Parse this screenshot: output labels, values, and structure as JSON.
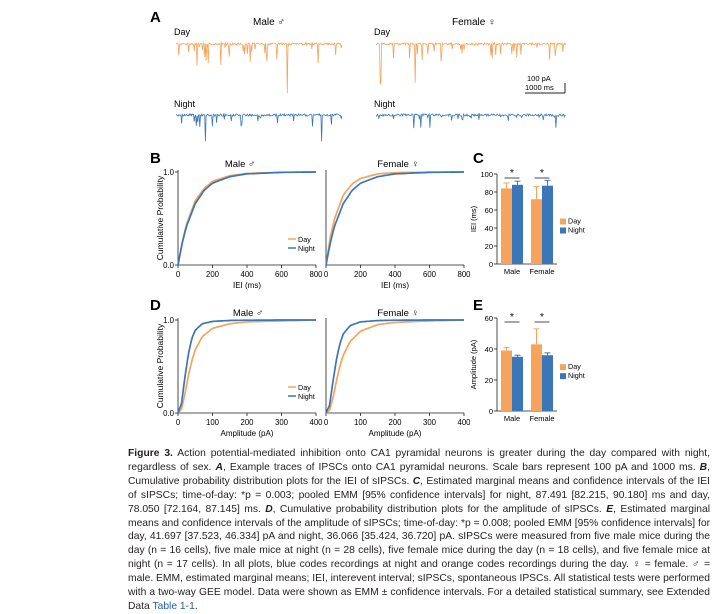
{
  "colors": {
    "day": "#f7a35c",
    "night": "#3b76b8",
    "link": "#1f5fa0",
    "axis": "#231f20"
  },
  "panel_a": {
    "letter": "A",
    "male_title": "Male ♂",
    "female_title": "Female ♀",
    "day_label": "Day",
    "night_label": "Night",
    "scale_pa": "100 pA",
    "scale_ms": "1000 ms"
  },
  "panel_b": {
    "letter": "B",
    "ylabel": "Cumulative Probability",
    "male_title": "Male ♂",
    "female_title": "Female ♀"
  },
  "panel_c": {
    "letter": "C"
  },
  "panel_d": {
    "letter": "D",
    "ylabel": "Cumulative Probability",
    "male_title": "Male ♂",
    "female_title": "Female ♀"
  },
  "panel_e": {
    "letter": "E"
  },
  "chart_data": [
    {
      "type": "line",
      "panel": "B-male",
      "title": "Male ♂",
      "xlabel": "IEI (ms)",
      "ylabel": "Cumulative Probability",
      "xlim": [
        0,
        800
      ],
      "ylim": [
        0,
        1
      ],
      "xticks": [
        "0",
        "200",
        "400",
        "600",
        "800"
      ],
      "yticks": [
        "0.0",
        "1.0"
      ],
      "legend": "bottom-right",
      "series": [
        {
          "name": "Day",
          "x": [
            0,
            25,
            50,
            100,
            150,
            200,
            300,
            400,
            600,
            800
          ],
          "y": [
            0,
            0.25,
            0.44,
            0.69,
            0.82,
            0.9,
            0.96,
            0.985,
            0.997,
            1.0
          ]
        },
        {
          "name": "Night",
          "x": [
            0,
            25,
            50,
            100,
            150,
            200,
            300,
            400,
            600,
            800
          ],
          "y": [
            0,
            0.24,
            0.42,
            0.66,
            0.8,
            0.88,
            0.95,
            0.98,
            0.996,
            1.0
          ]
        }
      ]
    },
    {
      "type": "line",
      "panel": "B-female",
      "title": "Female ♀",
      "xlabel": "IEI (ms)",
      "ylabel": "",
      "xlim": [
        0,
        800
      ],
      "ylim": [
        0,
        1
      ],
      "xticks": [
        "0",
        "200",
        "400",
        "600",
        "800"
      ],
      "yticks": [],
      "legend": "none",
      "series": [
        {
          "name": "Day",
          "x": [
            0,
            25,
            50,
            100,
            150,
            200,
            300,
            400,
            600,
            800
          ],
          "y": [
            0,
            0.3,
            0.5,
            0.75,
            0.87,
            0.93,
            0.98,
            0.993,
            0.999,
            1.0
          ]
        },
        {
          "name": "Night",
          "x": [
            0,
            25,
            50,
            100,
            150,
            200,
            300,
            400,
            600,
            800
          ],
          "y": [
            0,
            0.24,
            0.42,
            0.66,
            0.8,
            0.88,
            0.95,
            0.98,
            0.996,
            1.0
          ]
        }
      ]
    },
    {
      "type": "bar",
      "panel": "C",
      "ylabel": "IEI (ms)",
      "categories": [
        "Male",
        "Female"
      ],
      "ylim": [
        0,
        100
      ],
      "yticks": [
        "0",
        "20",
        "40",
        "60",
        "80",
        "100"
      ],
      "legend": "right",
      "series": [
        {
          "name": "Day",
          "values": [
            84,
            72
          ],
          "errors": [
            6,
            14
          ]
        },
        {
          "name": "Night",
          "values": [
            88,
            87
          ],
          "errors": [
            4,
            6
          ]
        }
      ],
      "annotations": [
        "*",
        "*"
      ]
    },
    {
      "type": "line",
      "panel": "D-male",
      "title": "Male ♂",
      "xlabel": "Amplitude (pA)",
      "ylabel": "Cumulative Probability",
      "xlim": [
        0,
        400
      ],
      "ylim": [
        0,
        1
      ],
      "xticks": [
        "0",
        "100",
        "200",
        "300",
        "400"
      ],
      "yticks": [
        "0.0",
        "1.0"
      ],
      "legend": "bottom-right",
      "series": [
        {
          "name": "Day",
          "x": [
            0,
            10,
            20,
            30,
            40,
            50,
            70,
            100,
            150,
            200,
            300,
            400
          ],
          "y": [
            0,
            0.04,
            0.2,
            0.4,
            0.56,
            0.68,
            0.82,
            0.91,
            0.96,
            0.98,
            0.99,
            1.0
          ]
        },
        {
          "name": "Night",
          "x": [
            0,
            10,
            20,
            30,
            40,
            50,
            70,
            100,
            150,
            200,
            300,
            400
          ],
          "y": [
            0,
            0.1,
            0.38,
            0.63,
            0.8,
            0.89,
            0.96,
            0.985,
            0.995,
            0.998,
            1.0,
            1.0
          ]
        }
      ]
    },
    {
      "type": "line",
      "panel": "D-female",
      "title": "Female ♀",
      "xlabel": "Amplitude (pA)",
      "ylabel": "",
      "xlim": [
        0,
        400
      ],
      "ylim": [
        0,
        1
      ],
      "xticks": [
        "0",
        "100",
        "200",
        "300",
        "400"
      ],
      "yticks": [],
      "legend": "none",
      "series": [
        {
          "name": "Day",
          "x": [
            0,
            10,
            20,
            30,
            40,
            50,
            70,
            100,
            150,
            200,
            300,
            400
          ],
          "y": [
            0,
            0.03,
            0.16,
            0.34,
            0.5,
            0.62,
            0.77,
            0.88,
            0.95,
            0.975,
            0.99,
            1.0
          ]
        },
        {
          "name": "Night",
          "x": [
            0,
            10,
            20,
            30,
            40,
            50,
            70,
            100,
            150,
            200,
            300,
            400
          ],
          "y": [
            0,
            0.08,
            0.33,
            0.57,
            0.74,
            0.85,
            0.94,
            0.98,
            0.994,
            0.998,
            1.0,
            1.0
          ]
        }
      ]
    },
    {
      "type": "bar",
      "panel": "E",
      "ylabel": "Amplitude (pA)",
      "categories": [
        "Male",
        "Female"
      ],
      "ylim": [
        0,
        60
      ],
      "yticks": [
        "0",
        "20",
        "40",
        "60"
      ],
      "legend": "right",
      "series": [
        {
          "name": "Day",
          "values": [
            39,
            43
          ],
          "errors": [
            2,
            10
          ]
        },
        {
          "name": "Night",
          "values": [
            35,
            36
          ],
          "errors": [
            1,
            1.5
          ]
        }
      ],
      "annotations": [
        "*",
        "*"
      ]
    }
  ],
  "caption": {
    "label": "Figure 3.",
    "text": "Action potential-mediated inhibition onto CA1 pyramidal neurons is greater during the day compared with night, regardless of sex.",
    "a": "A",
    "a_text": ", Example traces of IPSCs onto CA1 pyramidal neurons. Scale bars represent 100 pA and 1000 ms.",
    "b": "B",
    "b_text": ", Cumulative probability distribution plots for the IEI of sIPSCs.",
    "c": "C",
    "c_text": ", Estimated marginal means and confidence intervals of the IEI of sIPSCs; time-of-day: *p = 0.003; pooled EMM [95% confidence intervals] for night, 87.491 [82.215, 90.180] ms and day, 78.050 [72.164, 87.145] ms.",
    "d": "D",
    "d_text": ", Cumulative probability distribution plots for the amplitude of sIPSCs.",
    "e": "E",
    "e_text": ", Estimated marginal means and confidence intervals of the amplitude of sIPSCs; time-of-day: *p = 0.008; pooled EMM [95% confidence intervals] for day, 41.697 [37.523, 46.334] pA and night, 36.066 [35.424, 36.720] pA. sIPSCs were measured from five male mice during the day (n = 16 cells), five male mice at night (n = 28 cells), five female mice during the day (n = 18 cells), and five female mice at night (n = 17 cells). In all plots, blue codes recordings at night and orange codes recordings during the day. ♀ = female. ♂ = male. EMM, estimated marginal means; IEI, interevent interval; sIPSCs, spontaneous IPSCs. All statistical tests were performed with a two-way GEE model. Data were shown as EMM ± confidence intervals. For a detailed statistical summary, see Extended Data",
    "link": "Table 1-1",
    "end": "."
  }
}
